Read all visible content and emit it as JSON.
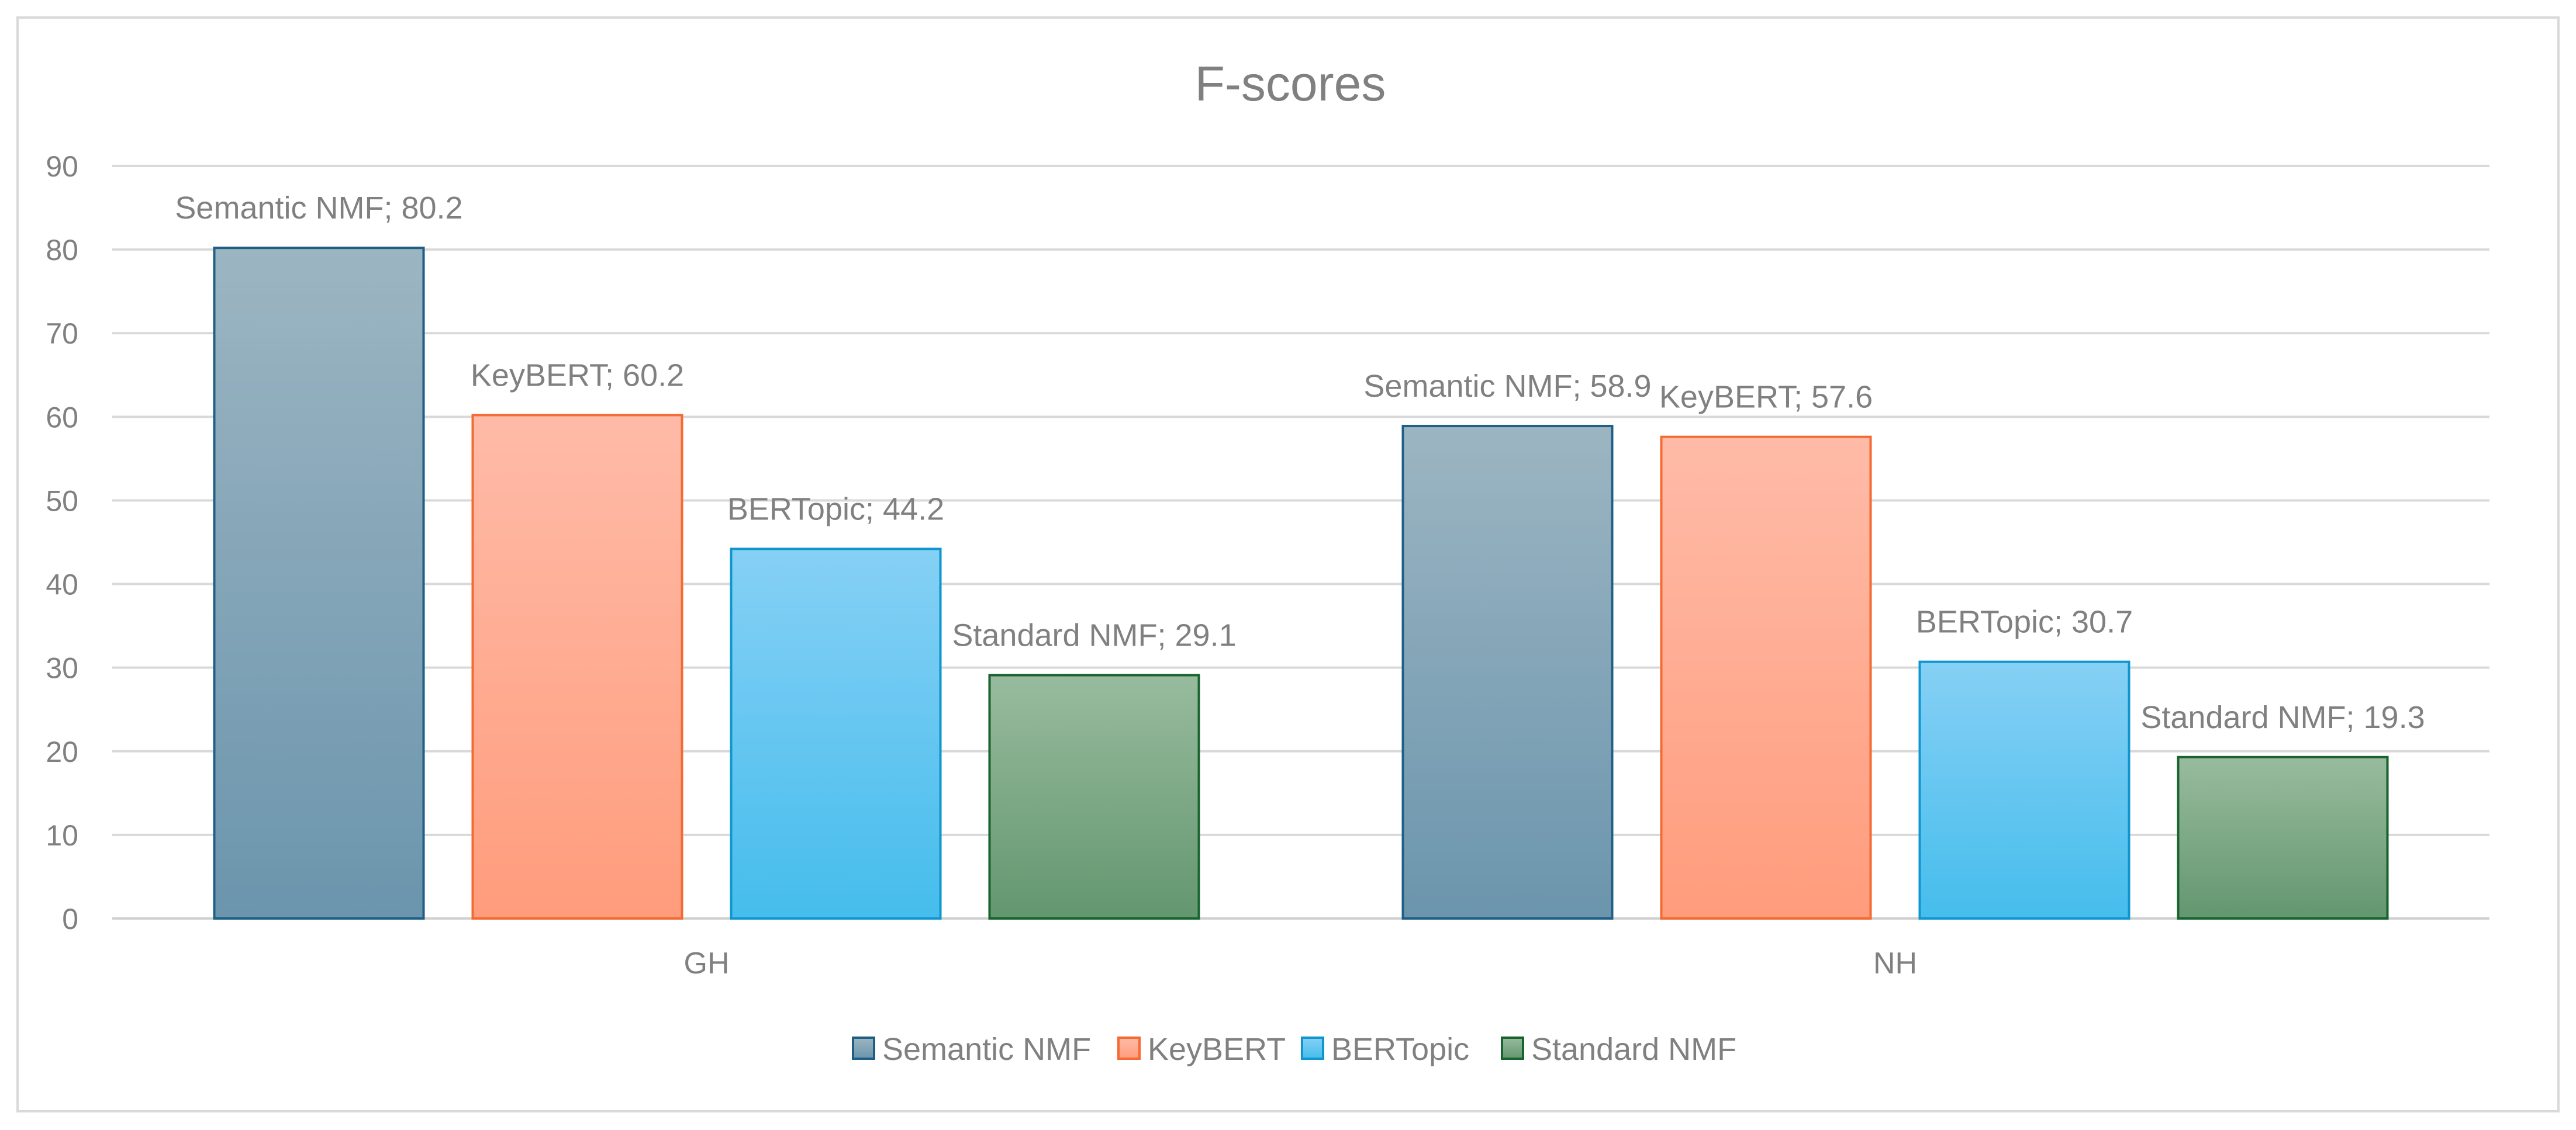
{
  "chart_data": {
    "type": "bar",
    "title": "F-scores",
    "xlabel": "",
    "ylabel": "",
    "categories": [
      "GH",
      "NH"
    ],
    "ylim": [
      0,
      90
    ],
    "yticks": [
      0,
      10,
      20,
      30,
      40,
      50,
      60,
      70,
      80,
      90
    ],
    "grid": true,
    "legend_position": "bottom",
    "data_label_separator": "; ",
    "series": [
      {
        "name": "Semantic NMF",
        "values": [
          80.2,
          58.9
        ],
        "color_top": "#9cb5c2",
        "color_bottom": "#6b95ad",
        "border": "#1f5f86"
      },
      {
        "name": "KeyBERT",
        "values": [
          60.2,
          57.6
        ],
        "color_top": "#ffbba8",
        "color_bottom": "#ff9c7c",
        "border": "#f46a32"
      },
      {
        "name": "BERTopic",
        "values": [
          44.2,
          30.7
        ],
        "color_top": "#86d0f5",
        "color_bottom": "#45bdec",
        "border": "#0f96cf"
      },
      {
        "name": "Standard NMF",
        "values": [
          29.1,
          19.3
        ],
        "color_top": "#98bb9e",
        "color_bottom": "#63976f",
        "border": "#18632e"
      }
    ]
  }
}
